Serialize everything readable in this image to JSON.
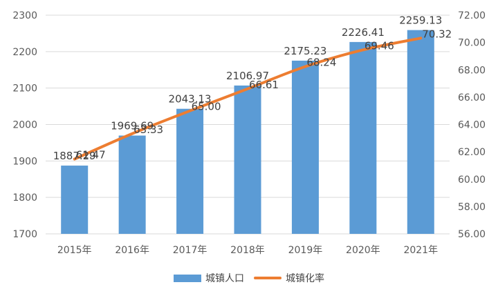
{
  "chart_data": {
    "type": "bar+line",
    "categories": [
      "2015年",
      "2016年",
      "2017年",
      "2018年",
      "2019年",
      "2020年",
      "2021年"
    ],
    "series": [
      {
        "name": "城镇人口",
        "type": "bar",
        "axis": "left",
        "values": [
          1887.29,
          1969.69,
          2043.13,
          2106.97,
          2175.23,
          2226.41,
          2259.13
        ],
        "labels": [
          "1887.29",
          "1969.69",
          "2043.13",
          "2106.97",
          "2175.23",
          "2226.41",
          "2259.13"
        ],
        "color": "#5b9bd5"
      },
      {
        "name": "城镇化率",
        "type": "line",
        "axis": "right",
        "values": [
          61.47,
          63.33,
          65.0,
          66.61,
          68.24,
          69.46,
          70.32
        ],
        "labels": [
          "61.47",
          "63.33",
          "65.00",
          "66.61",
          "68.24",
          "69.46",
          "70.32"
        ],
        "color": "#ed7d31"
      }
    ],
    "left_axis": {
      "min": 1700,
      "max": 2300,
      "step": 100,
      "tick_labels": [
        "1700",
        "1800",
        "1900",
        "2000",
        "2100",
        "2200",
        "2300"
      ]
    },
    "right_axis": {
      "min": 56,
      "max": 72,
      "step": 2,
      "tick_labels": [
        "56.00",
        "58.00",
        "60.00",
        "62.00",
        "64.00",
        "66.00",
        "68.00",
        "70.00",
        "72.00"
      ]
    },
    "grid": true,
    "legend_position": "bottom"
  }
}
